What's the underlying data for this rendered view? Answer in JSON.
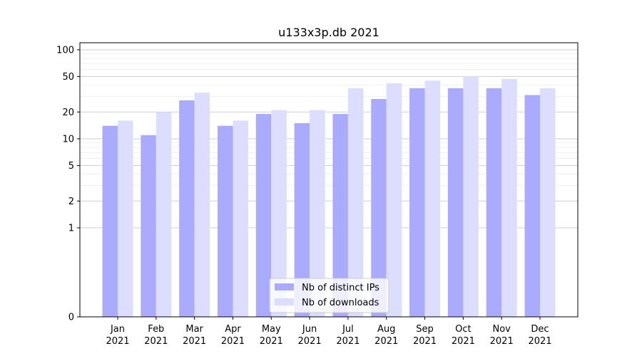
{
  "chart_data": {
    "type": "bar",
    "title": "u133x3p.db 2021",
    "xlabel": "",
    "ylabel": "",
    "yscale": "symlog",
    "ylim": [
      0,
      120
    ],
    "yticks": [
      0,
      1,
      2,
      5,
      10,
      20,
      50,
      100
    ],
    "ytick_labels": [
      "0",
      "1",
      "2",
      "5",
      "10",
      "20",
      "50",
      "100"
    ],
    "grid": true,
    "legend_position": "bottom-center",
    "categories": [
      [
        "Jan",
        "2021"
      ],
      [
        "Feb",
        "2021"
      ],
      [
        "Mar",
        "2021"
      ],
      [
        "Apr",
        "2021"
      ],
      [
        "May",
        "2021"
      ],
      [
        "Jun",
        "2021"
      ],
      [
        "Jul",
        "2021"
      ],
      [
        "Aug",
        "2021"
      ],
      [
        "Sep",
        "2021"
      ],
      [
        "Oct",
        "2021"
      ],
      [
        "Nov",
        "2021"
      ],
      [
        "Dec",
        "2021"
      ]
    ],
    "series": [
      {
        "name": "Nb of distinct IPs",
        "color": "#aaaaff",
        "values": [
          14,
          11,
          27,
          14,
          19,
          15,
          19,
          28,
          37,
          37,
          37,
          31
        ]
      },
      {
        "name": "Nb of downloads",
        "color": "#ddddff",
        "values": [
          16,
          20,
          33,
          16,
          21,
          21,
          37,
          42,
          45,
          50,
          47,
          37
        ]
      }
    ]
  }
}
